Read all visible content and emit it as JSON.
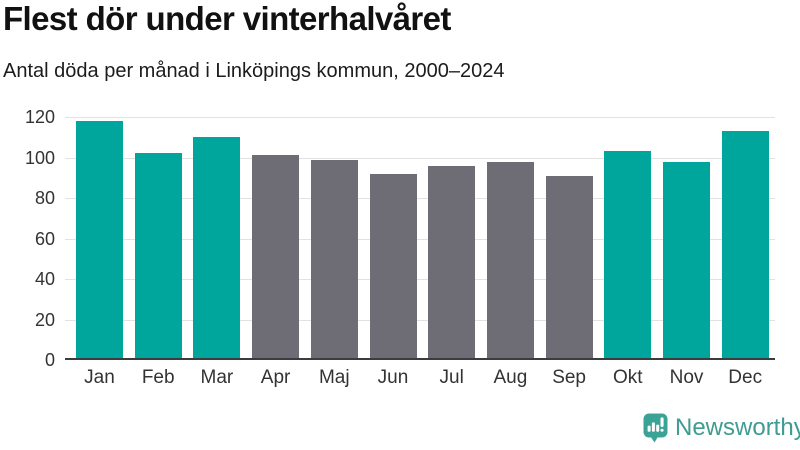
{
  "header": {
    "title": "Flest dör under vinterhalvåret",
    "subtitle": "Antal döda per månad i Linköpings kommun, 2000–2024"
  },
  "chart_data": {
    "type": "bar",
    "title": "Flest dör under vinterhalvåret",
    "subtitle": "Antal döda per månad i Linköpings kommun, 2000–2024",
    "categories": [
      "Jan",
      "Feb",
      "Mar",
      "Apr",
      "Maj",
      "Jun",
      "Jul",
      "Aug",
      "Sep",
      "Okt",
      "Nov",
      "Dec"
    ],
    "values": [
      118,
      102,
      110,
      101,
      99,
      92,
      96,
      98,
      91,
      103,
      98,
      113
    ],
    "colors": [
      "#00A59B",
      "#00A59B",
      "#00A59B",
      "#6E6D75",
      "#6E6D75",
      "#6E6D75",
      "#6E6D75",
      "#6E6D75",
      "#6E6D75",
      "#00A59B",
      "#00A59B",
      "#00A59B"
    ],
    "highlight_color": "#00A59B",
    "base_color": "#6E6D75",
    "xlabel": "",
    "ylabel": "",
    "ylim": [
      0,
      120
    ],
    "yticks": [
      0,
      20,
      40,
      60,
      80,
      100,
      120
    ],
    "grid": true,
    "legend": "none"
  },
  "branding": {
    "logo_text": "Newsworthy",
    "logo_text_color": "#3E9C91",
    "logo_icon_color": "#3BA396",
    "logo_icon": "newsworthy-chart-bubble-icon"
  }
}
